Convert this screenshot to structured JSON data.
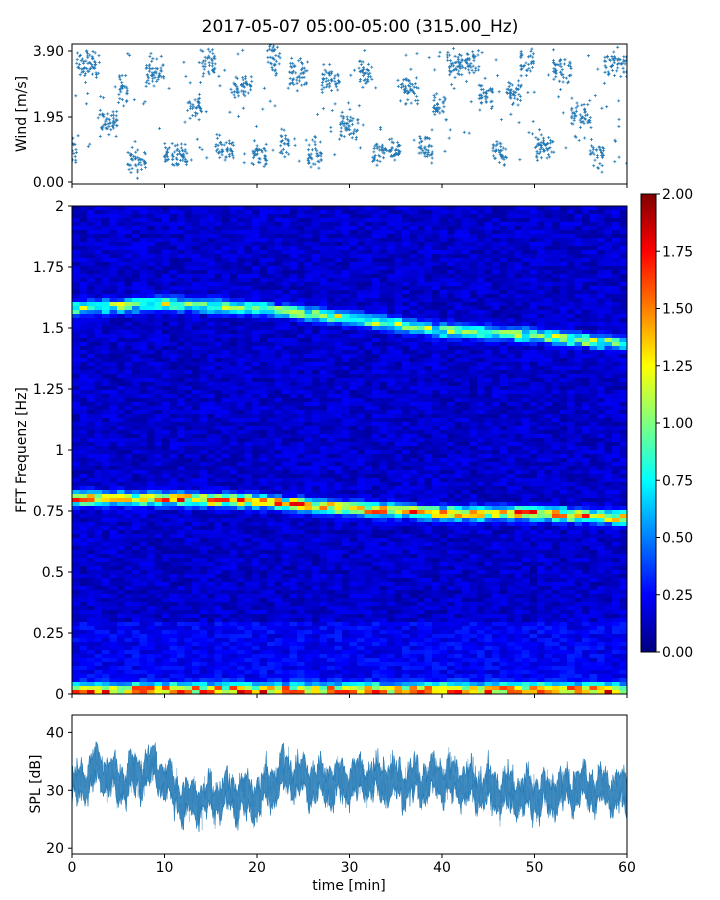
{
  "chart_data": [
    {
      "type": "scatter",
      "title": "2017-05-07 05:00-05:00 (315.00_Hz)",
      "ylabel": "Wind [m/s]",
      "xlim": [
        0,
        60
      ],
      "ylim": [
        0,
        3.9
      ],
      "yticks": [
        "0.00",
        "1.95",
        "3.90"
      ],
      "color": "#1f77b4",
      "marker": "+",
      "segments": [
        {
          "x0": 0.0,
          "x1": 0.5,
          "level": 0.8
        },
        {
          "x0": 0.5,
          "x1": 3.0,
          "level": 3.2
        },
        {
          "x0": 3.0,
          "x1": 5.0,
          "level": 1.6
        },
        {
          "x0": 5.0,
          "x1": 6.0,
          "level": 2.6
        },
        {
          "x0": 6.0,
          "x1": 8.0,
          "level": 0.55
        },
        {
          "x0": 8.0,
          "x1": 10.0,
          "level": 3.0
        },
        {
          "x0": 10.0,
          "x1": 12.5,
          "level": 0.7
        },
        {
          "x0": 12.5,
          "x1": 14.0,
          "level": 2.0
        },
        {
          "x0": 14.0,
          "x1": 15.5,
          "level": 3.2
        },
        {
          "x0": 15.5,
          "x1": 17.5,
          "level": 0.8
        },
        {
          "x0": 17.5,
          "x1": 19.5,
          "level": 2.6
        },
        {
          "x0": 19.5,
          "x1": 21.0,
          "level": 0.7
        },
        {
          "x0": 21.0,
          "x1": 22.5,
          "level": 3.4
        },
        {
          "x0": 22.5,
          "x1": 23.5,
          "level": 1.0
        },
        {
          "x0": 23.5,
          "x1": 25.5,
          "level": 3.0
        },
        {
          "x0": 25.5,
          "x1": 27.0,
          "level": 0.7
        },
        {
          "x0": 27.0,
          "x1": 29.0,
          "level": 2.8
        },
        {
          "x0": 29.0,
          "x1": 31.0,
          "level": 1.5
        },
        {
          "x0": 31.0,
          "x1": 32.5,
          "level": 3.0
        },
        {
          "x0": 32.5,
          "x1": 35.5,
          "level": 0.8
        },
        {
          "x0": 35.5,
          "x1": 37.5,
          "level": 2.5
        },
        {
          "x0": 37.5,
          "x1": 39.0,
          "level": 0.9
        },
        {
          "x0": 39.0,
          "x1": 40.5,
          "level": 2.0
        },
        {
          "x0": 40.5,
          "x1": 44.0,
          "level": 3.3
        },
        {
          "x0": 44.0,
          "x1": 45.5,
          "level": 2.4
        },
        {
          "x0": 45.5,
          "x1": 47.0,
          "level": 0.7
        },
        {
          "x0": 47.0,
          "x1": 48.5,
          "level": 2.4
        },
        {
          "x0": 48.5,
          "x1": 50.0,
          "level": 3.3
        },
        {
          "x0": 50.0,
          "x1": 52.0,
          "level": 0.9
        },
        {
          "x0": 52.0,
          "x1": 54.0,
          "level": 3.1
        },
        {
          "x0": 54.0,
          "x1": 56.0,
          "level": 1.8
        },
        {
          "x0": 56.0,
          "x1": 57.5,
          "level": 0.7
        },
        {
          "x0": 57.5,
          "x1": 60.0,
          "level": 3.2
        }
      ]
    },
    {
      "type": "heatmap",
      "ylabel": "FFT Frequenz [Hz]",
      "xlim": [
        0,
        60
      ],
      "ylim": [
        0,
        2
      ],
      "yticks": [
        "0",
        "0.25",
        "0.5",
        "0.75",
        "1",
        "1.25",
        "1.5",
        "1.75",
        "2"
      ],
      "colormap": "jet",
      "colorbar": {
        "range": [
          0,
          2
        ],
        "ticks": [
          "0.00",
          "0.25",
          "0.50",
          "0.75",
          "1.00",
          "1.25",
          "1.50",
          "1.75",
          "2.00"
        ],
        "stops": [
          "#00007f",
          "#0000ff",
          "#007fff",
          "#00ffff",
          "#7fff7f",
          "#ffff00",
          "#ff7f00",
          "#ff0000",
          "#7f0000"
        ]
      },
      "background_level": 0.15,
      "bands": [
        {
          "name": "",
          "points": [
            [
              0,
              1.58
            ],
            [
              10,
              1.6
            ],
            [
              20,
              1.58
            ],
            [
              30,
              1.54
            ],
            [
              40,
              1.49
            ],
            [
              50,
              1.47
            ],
            [
              60,
              1.43
            ]
          ],
          "intensity": 0.9
        },
        {
          "name": "",
          "points": [
            [
              0,
              0.8
            ],
            [
              10,
              0.8
            ],
            [
              20,
              0.79
            ],
            [
              30,
              0.76
            ],
            [
              40,
              0.74
            ],
            [
              50,
              0.74
            ],
            [
              60,
              0.72
            ]
          ],
          "intensity": 1.3
        },
        {
          "name": "",
          "points": [
            [
              0,
              0.015
            ],
            [
              60,
              0.015
            ]
          ],
          "intensity": 1.3
        }
      ]
    },
    {
      "type": "area",
      "ylabel": "SPL [dB]",
      "xlabel": "time [min]",
      "xlim": [
        0,
        60
      ],
      "ylim": [
        19,
        43
      ],
      "xticks": [
        "0",
        "10",
        "20",
        "30",
        "40",
        "50",
        "60"
      ],
      "yticks": [
        "20",
        "30",
        "40"
      ],
      "color": "#1f77b4",
      "envelope": [
        {
          "x": 0,
          "mean": 30
        },
        {
          "x": 3,
          "mean": 34
        },
        {
          "x": 5,
          "mean": 31
        },
        {
          "x": 9,
          "mean": 34
        },
        {
          "x": 12,
          "mean": 28
        },
        {
          "x": 17,
          "mean": 29
        },
        {
          "x": 20,
          "mean": 28.5
        },
        {
          "x": 23,
          "mean": 33
        },
        {
          "x": 27,
          "mean": 31
        },
        {
          "x": 32,
          "mean": 32
        },
        {
          "x": 36,
          "mean": 31
        },
        {
          "x": 40,
          "mean": 32
        },
        {
          "x": 45,
          "mean": 30
        },
        {
          "x": 50,
          "mean": 29
        },
        {
          "x": 55,
          "mean": 30.5
        },
        {
          "x": 60,
          "mean": 29.5
        }
      ],
      "spread": 4.5
    }
  ]
}
